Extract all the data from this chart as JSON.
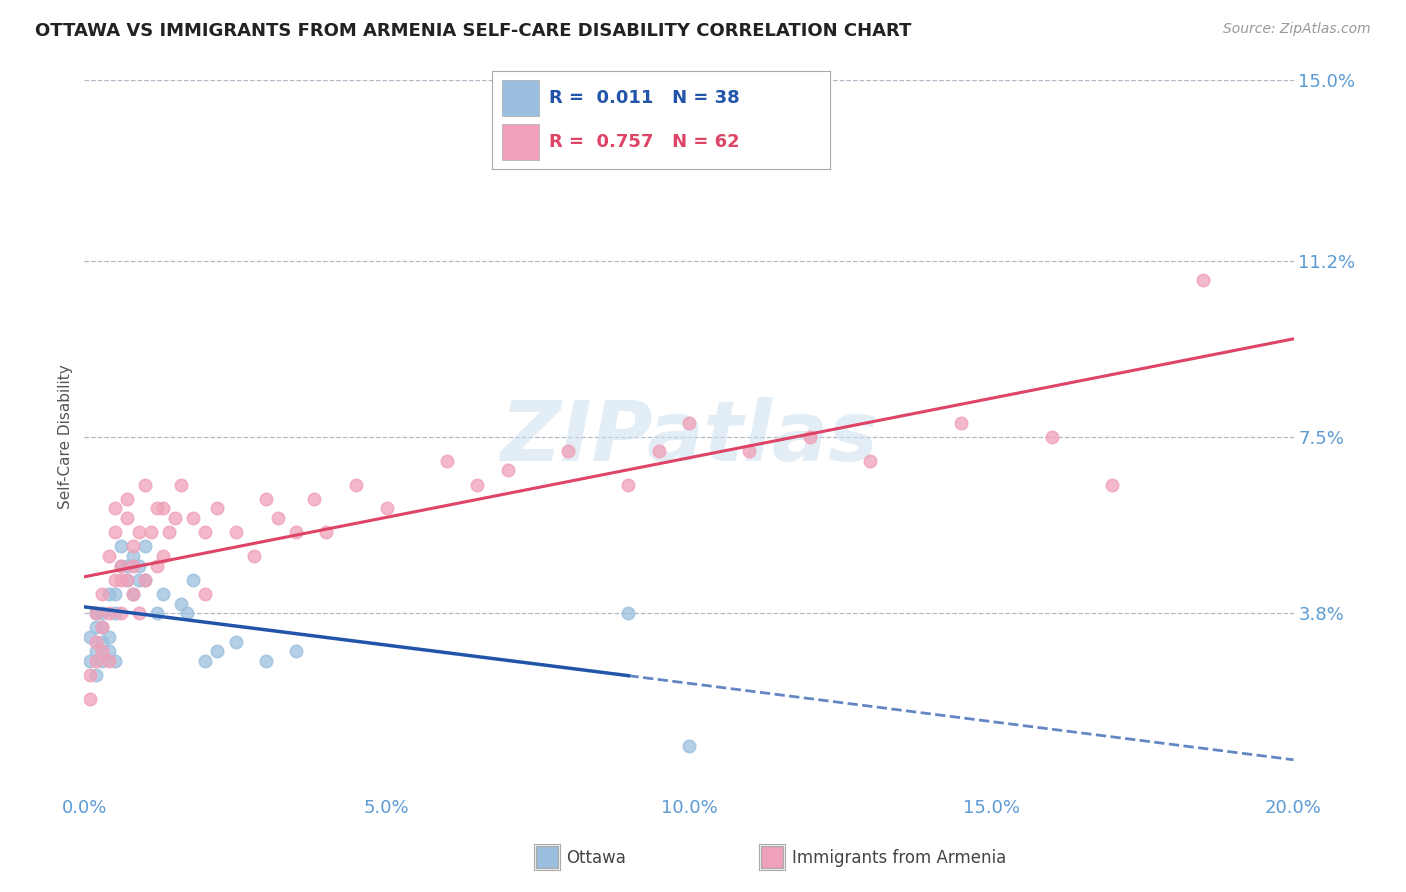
{
  "title": "OTTAWA VS IMMIGRANTS FROM ARMENIA SELF-CARE DISABILITY CORRELATION CHART",
  "source": "Source: ZipAtlas.com",
  "ylabel": "Self-Care Disability",
  "xlim": [
    0.0,
    0.2
  ],
  "ylim": [
    0.0,
    0.15
  ],
  "yticks": [
    0.038,
    0.075,
    0.112,
    0.15
  ],
  "ytick_labels": [
    "3.8%",
    "7.5%",
    "11.2%",
    "15.0%"
  ],
  "xticks": [
    0.0,
    0.05,
    0.1,
    0.15,
    0.2
  ],
  "xtick_labels": [
    "0.0%",
    "5.0%",
    "10.0%",
    "15.0%",
    "20.0%"
  ],
  "ottawa_color": "#9bbfde",
  "armenia_color": "#f0a0b8",
  "ottawa_line_color": "#2255aa",
  "armenia_line_color": "#dd4466",
  "axis_label_color": "#5b9bd5",
  "grid_color": "#b0b8c8",
  "title_color": "#222222",
  "watermark": "ZIPatlas",
  "ottawa_R": "0.011",
  "ottawa_N": "38",
  "armenia_R": "0.757",
  "armenia_N": "62",
  "ottawa_scatter": [
    [
      0.001,
      0.033
    ],
    [
      0.001,
      0.028
    ],
    [
      0.002,
      0.035
    ],
    [
      0.002,
      0.03
    ],
    [
      0.002,
      0.025
    ],
    [
      0.002,
      0.038
    ],
    [
      0.003,
      0.032
    ],
    [
      0.003,
      0.038
    ],
    [
      0.003,
      0.028
    ],
    [
      0.003,
      0.035
    ],
    [
      0.004,
      0.03
    ],
    [
      0.004,
      0.042
    ],
    [
      0.004,
      0.033
    ],
    [
      0.005,
      0.038
    ],
    [
      0.005,
      0.028
    ],
    [
      0.005,
      0.042
    ],
    [
      0.006,
      0.052
    ],
    [
      0.006,
      0.048
    ],
    [
      0.007,
      0.048
    ],
    [
      0.007,
      0.045
    ],
    [
      0.008,
      0.05
    ],
    [
      0.008,
      0.042
    ],
    [
      0.009,
      0.048
    ],
    [
      0.009,
      0.045
    ],
    [
      0.01,
      0.052
    ],
    [
      0.01,
      0.045
    ],
    [
      0.012,
      0.038
    ],
    [
      0.013,
      0.042
    ],
    [
      0.016,
      0.04
    ],
    [
      0.017,
      0.038
    ],
    [
      0.018,
      0.045
    ],
    [
      0.02,
      0.028
    ],
    [
      0.022,
      0.03
    ],
    [
      0.025,
      0.032
    ],
    [
      0.03,
      0.028
    ],
    [
      0.035,
      0.03
    ],
    [
      0.09,
      0.038
    ],
    [
      0.1,
      0.01
    ]
  ],
  "armenia_scatter": [
    [
      0.001,
      0.025
    ],
    [
      0.001,
      0.02
    ],
    [
      0.002,
      0.028
    ],
    [
      0.002,
      0.032
    ],
    [
      0.002,
      0.038
    ],
    [
      0.003,
      0.03
    ],
    [
      0.003,
      0.035
    ],
    [
      0.003,
      0.042
    ],
    [
      0.004,
      0.038
    ],
    [
      0.004,
      0.05
    ],
    [
      0.004,
      0.028
    ],
    [
      0.005,
      0.045
    ],
    [
      0.005,
      0.055
    ],
    [
      0.005,
      0.06
    ],
    [
      0.006,
      0.048
    ],
    [
      0.006,
      0.038
    ],
    [
      0.006,
      0.045
    ],
    [
      0.007,
      0.062
    ],
    [
      0.007,
      0.058
    ],
    [
      0.007,
      0.045
    ],
    [
      0.008,
      0.052
    ],
    [
      0.008,
      0.042
    ],
    [
      0.008,
      0.048
    ],
    [
      0.009,
      0.038
    ],
    [
      0.009,
      0.055
    ],
    [
      0.01,
      0.045
    ],
    [
      0.01,
      0.065
    ],
    [
      0.011,
      0.055
    ],
    [
      0.012,
      0.06
    ],
    [
      0.012,
      0.048
    ],
    [
      0.013,
      0.05
    ],
    [
      0.013,
      0.06
    ],
    [
      0.014,
      0.055
    ],
    [
      0.015,
      0.058
    ],
    [
      0.016,
      0.065
    ],
    [
      0.018,
      0.058
    ],
    [
      0.02,
      0.055
    ],
    [
      0.02,
      0.042
    ],
    [
      0.022,
      0.06
    ],
    [
      0.025,
      0.055
    ],
    [
      0.028,
      0.05
    ],
    [
      0.03,
      0.062
    ],
    [
      0.032,
      0.058
    ],
    [
      0.035,
      0.055
    ],
    [
      0.038,
      0.062
    ],
    [
      0.04,
      0.055
    ],
    [
      0.045,
      0.065
    ],
    [
      0.05,
      0.06
    ],
    [
      0.06,
      0.07
    ],
    [
      0.065,
      0.065
    ],
    [
      0.07,
      0.068
    ],
    [
      0.08,
      0.072
    ],
    [
      0.09,
      0.065
    ],
    [
      0.095,
      0.072
    ],
    [
      0.1,
      0.078
    ],
    [
      0.11,
      0.072
    ],
    [
      0.12,
      0.075
    ],
    [
      0.13,
      0.07
    ],
    [
      0.145,
      0.078
    ],
    [
      0.16,
      0.075
    ],
    [
      0.17,
      0.065
    ],
    [
      0.185,
      0.108
    ]
  ]
}
